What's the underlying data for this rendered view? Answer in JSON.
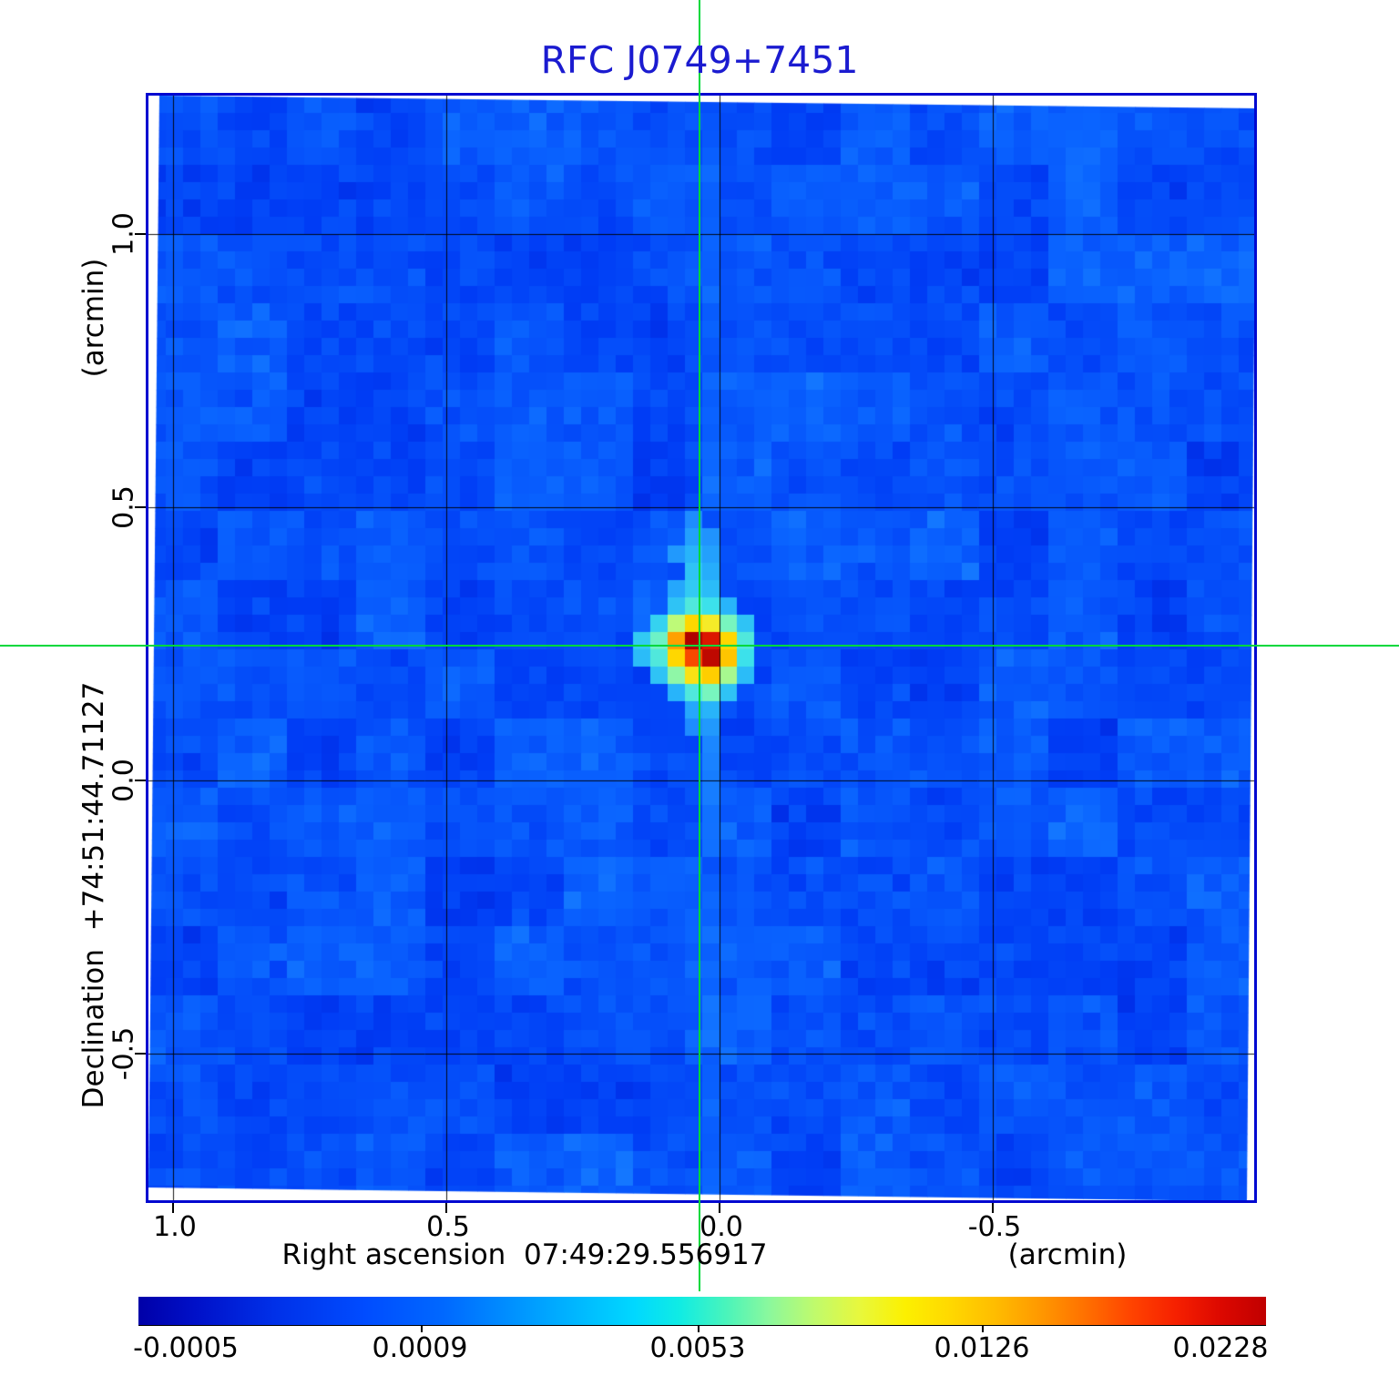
{
  "title": {
    "text": "RFC J0749+7451"
  },
  "axes": {
    "x": {
      "title": "Right ascension  07:49:29.556917",
      "unit": "(arcmin)",
      "tick_labels": [
        "1.0",
        "0.5",
        "0.0",
        "-0.5"
      ]
    },
    "y": {
      "title": "Declination  +74:51:44.71127",
      "unit": "(arcmin)",
      "tick_labels": [
        "1.0",
        "0.5",
        "0.0",
        "-0.5"
      ]
    }
  },
  "colorbar": {
    "tick_labels": [
      "-0.0005",
      "0.0009",
      "0.0053",
      "0.0126",
      "0.0228"
    ]
  },
  "colors": {
    "title_blue": "#1b1bd0",
    "frame_blue": "#0008d0",
    "crosshair_green": "#00d83c",
    "grid_black": "#000000"
  },
  "chart_data": {
    "type": "heatmap",
    "title": "RFC J0749+7451",
    "xlabel": "Right ascension  07:49:29.556917 (arcmin)",
    "ylabel": "Declination  +74:51:44.71127 (arcmin)",
    "x_ticks_arcmin": [
      1.0,
      0.5,
      0.0,
      -0.5
    ],
    "y_ticks_arcmin": [
      1.0,
      0.5,
      0.0,
      -0.5
    ],
    "x_range_arcmin": [
      1.045,
      -0.978
    ],
    "y_range_arcmin": [
      -0.767,
      1.253
    ],
    "grid_interval_arcmin": 0.5,
    "colorbar_ticks": [
      -0.0005,
      0.0009,
      0.0053,
      0.0126,
      0.0228
    ],
    "colorbar_scale": "nonlinear",
    "peak_value": 0.0228,
    "background_level": 0.0009,
    "crosshair_offset_arcmin": {
      "ra": 0.04,
      "dec": 0.25
    },
    "grid_cells": 64,
    "source_cells": [
      [
        31,
        24,
        0.38
      ],
      [
        31,
        25,
        0.41
      ],
      [
        32,
        25,
        0.39
      ],
      [
        30,
        26,
        0.4
      ],
      [
        31,
        26,
        0.44
      ],
      [
        32,
        26,
        0.41
      ],
      [
        31,
        27,
        0.46
      ],
      [
        32,
        27,
        0.43
      ],
      [
        30,
        28,
        0.42
      ],
      [
        31,
        28,
        0.47
      ],
      [
        32,
        28,
        0.45
      ],
      [
        30,
        29,
        0.46
      ],
      [
        31,
        29,
        0.52
      ],
      [
        32,
        29,
        0.5
      ],
      [
        33,
        29,
        0.44
      ],
      [
        29,
        30,
        0.48
      ],
      [
        30,
        30,
        0.62
      ],
      [
        31,
        30,
        0.74
      ],
      [
        32,
        30,
        0.7
      ],
      [
        33,
        30,
        0.56
      ],
      [
        34,
        30,
        0.46
      ],
      [
        28,
        31,
        0.47
      ],
      [
        29,
        31,
        0.55
      ],
      [
        30,
        31,
        0.8
      ],
      [
        31,
        31,
        1.0
      ],
      [
        32,
        31,
        0.94
      ],
      [
        33,
        31,
        0.74
      ],
      [
        34,
        31,
        0.52
      ],
      [
        28,
        32,
        0.45
      ],
      [
        29,
        32,
        0.52
      ],
      [
        30,
        32,
        0.74
      ],
      [
        31,
        32,
        0.88
      ],
      [
        32,
        32,
        0.98
      ],
      [
        33,
        32,
        0.76
      ],
      [
        34,
        32,
        0.5
      ],
      [
        29,
        33,
        0.46
      ],
      [
        30,
        33,
        0.58
      ],
      [
        31,
        33,
        0.72
      ],
      [
        32,
        33,
        0.75
      ],
      [
        33,
        33,
        0.6
      ],
      [
        34,
        33,
        0.45
      ],
      [
        30,
        34,
        0.44
      ],
      [
        31,
        34,
        0.52
      ],
      [
        32,
        34,
        0.56
      ],
      [
        33,
        34,
        0.46
      ],
      [
        31,
        35,
        0.42
      ],
      [
        32,
        35,
        0.44
      ],
      [
        31,
        36,
        0.38
      ],
      [
        32,
        36,
        0.4
      ],
      [
        32,
        37,
        0.37
      ],
      [
        32,
        38,
        0.36
      ],
      [
        32,
        39,
        0.35
      ],
      [
        32,
        40,
        0.35
      ]
    ]
  }
}
